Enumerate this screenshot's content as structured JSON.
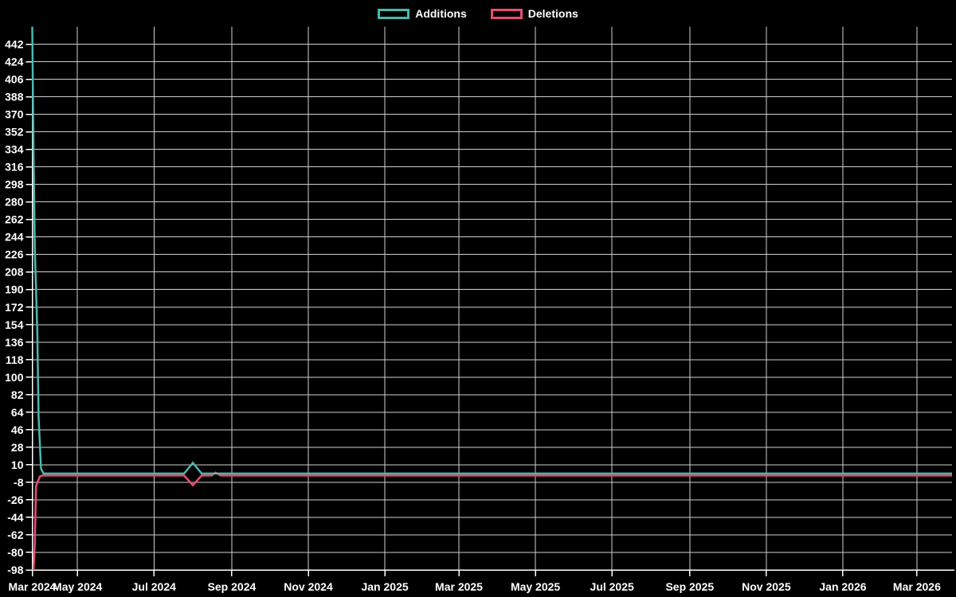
{
  "legend": {
    "items": [
      {
        "label": "Additions",
        "color": "#4bb8ae"
      },
      {
        "label": "Deletions",
        "color": "#ea4c71"
      }
    ]
  },
  "colors": {
    "background": "#000000",
    "additions_line": "#4bb8ae",
    "deletions_line": "#ea4c71",
    "gridline": "#cfcfcf",
    "axis_line": "#ffffff",
    "tick_label": "#ffffff"
  },
  "chart_data": {
    "type": "line",
    "title": "",
    "xlabel": "",
    "ylabel": "",
    "grid": true,
    "legend_position": "top-center",
    "x_axis": {
      "type": "time",
      "min_date": "2024-03-26",
      "max_date": "2026-03-29",
      "tick_dates": [
        "2024-03-26",
        "2024-05-01",
        "2024-07-01",
        "2024-09-01",
        "2024-11-01",
        "2025-01-01",
        "2025-03-01",
        "2025-05-01",
        "2025-07-01",
        "2025-09-01",
        "2025-11-01",
        "2026-01-01",
        "2026-03-01"
      ],
      "tick_labels": [
        "Mar 2024",
        "May 2024",
        "Jul 2024",
        "Sep 2024",
        "Nov 2024",
        "Jan 2025",
        "Mar 2025",
        "May 2025",
        "Jul 2025",
        "Sep 2025",
        "Nov 2025",
        "Jan 2026",
        "Mar 2026"
      ]
    },
    "y_axis": {
      "min": -98,
      "max": 460,
      "tick_step": 18,
      "tick_labels": [
        "-98",
        "-80",
        "-62",
        "-44",
        "-26",
        "-8",
        "10",
        "28",
        "46",
        "64",
        "82",
        "100",
        "118",
        "136",
        "154",
        "172",
        "190",
        "208",
        "226",
        "244",
        "262",
        "280",
        "298",
        "316",
        "334",
        "352",
        "370",
        "388",
        "406",
        "424",
        "442"
      ]
    },
    "series": [
      {
        "name": "Additions",
        "color": "#4bb8ae",
        "points": [
          [
            "2024-03-26",
            460
          ],
          [
            "2024-03-27",
            330
          ],
          [
            "2024-03-28",
            232
          ],
          [
            "2024-03-30",
            148
          ],
          [
            "2024-03-31",
            60
          ],
          [
            "2024-04-02",
            6
          ],
          [
            "2024-04-04",
            1
          ],
          [
            "2024-07-25",
            1
          ],
          [
            "2024-08-01",
            12
          ],
          [
            "2024-08-08",
            1
          ],
          [
            "2026-03-29",
            1
          ]
        ]
      },
      {
        "name": "Deletions",
        "color": "#ea4c71",
        "points": [
          [
            "2024-03-27",
            -98
          ],
          [
            "2024-03-28",
            -70
          ],
          [
            "2024-03-29",
            -12
          ],
          [
            "2024-04-01",
            -2
          ],
          [
            "2024-04-03",
            -1
          ],
          [
            "2024-07-25",
            -1
          ],
          [
            "2024-08-01",
            -11
          ],
          [
            "2024-08-08",
            -1
          ],
          [
            "2024-08-16",
            -1
          ],
          [
            "2024-08-19",
            2
          ],
          [
            "2024-08-23",
            -1
          ],
          [
            "2026-03-29",
            -1
          ]
        ]
      }
    ]
  }
}
